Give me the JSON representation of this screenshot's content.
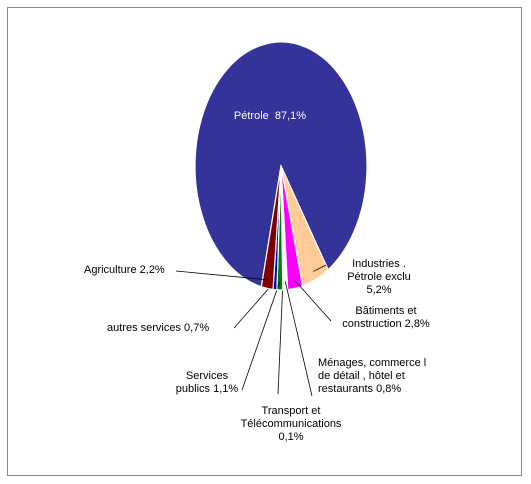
{
  "chart_data": {
    "type": "pie",
    "categories": [
      "Pétrole",
      "Industries . Pétrole exclu",
      "Bâtiments et construction",
      "Ménages, commerce l de détail , hôtel  et restaurants",
      "Transport et Télécommunications",
      "Services publics",
      "autres services",
      "Agriculture"
    ],
    "values": [
      87.1,
      5.2,
      2.8,
      0.8,
      0.1,
      1.1,
      0.7,
      2.2
    ],
    "value_labels": [
      "87,1%",
      "5,2%",
      "2,8%",
      "0,8%",
      "0,1%",
      "1,1%",
      "0,7%",
      "2,2%"
    ],
    "colors": [
      "#333399",
      "#ffcc99",
      "#ff00ff",
      "#ffffff",
      "#3366ff",
      "#008000",
      "#0000cc",
      "#800000"
    ]
  }
}
